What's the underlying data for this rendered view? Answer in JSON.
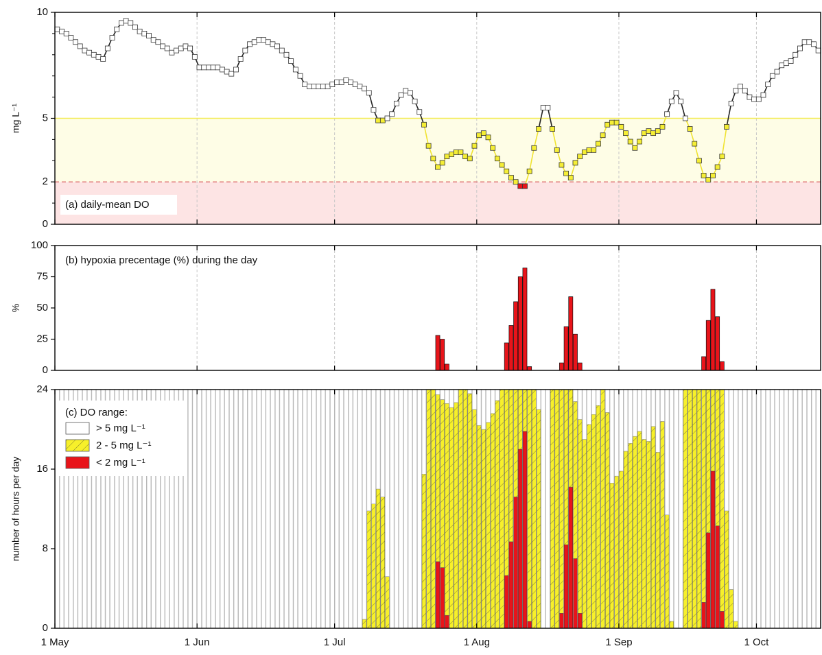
{
  "chart_data": [
    {
      "type": "line",
      "ylabel": "mg L⁻¹",
      "annotation": "(a) daily-mean DO",
      "xlim": [
        0,
        167
      ],
      "xticks": [
        0,
        31,
        61,
        92,
        123,
        153
      ],
      "grid": true,
      "ylim": [
        0,
        10
      ],
      "yticks": [
        0,
        2,
        5,
        10
      ],
      "minor_yticks": [
        1,
        3,
        4,
        6,
        7,
        8,
        9
      ],
      "thresholds": [
        2,
        5
      ],
      "band_colors": [
        "#fde4e4",
        "#fefde6"
      ],
      "threshold_line_colors": [
        "#e07a7a",
        "#f3eb55"
      ],
      "threshold_line_dash": [
        true,
        false
      ],
      "marker_colors": [
        "#e8141a",
        "#f5ee35",
        "#ffffff"
      ],
      "line_colors": [
        "#c8102e",
        "#f0e330",
        "#222222"
      ],
      "x": [
        0,
        1,
        2,
        3,
        4,
        5,
        6,
        7,
        8,
        9,
        10,
        11,
        12,
        13,
        14,
        15,
        16,
        17,
        18,
        19,
        20,
        21,
        22,
        23,
        24,
        25,
        26,
        27,
        28,
        29,
        30,
        31,
        32,
        33,
        34,
        35,
        36,
        37,
        38,
        39,
        40,
        41,
        42,
        43,
        44,
        45,
        46,
        47,
        48,
        49,
        50,
        51,
        52,
        53,
        54,
        55,
        56,
        57,
        58,
        59,
        60,
        61,
        62,
        63,
        64,
        65,
        66,
        67,
        68,
        69,
        70,
        71,
        72,
        73,
        74,
        75,
        76,
        77,
        78,
        79,
        80,
        81,
        82,
        83,
        84,
        85,
        86,
        87,
        88,
        89,
        90,
        91,
        92,
        93,
        94,
        95,
        96,
        97,
        98,
        99,
        100,
        101,
        102,
        103,
        104,
        105,
        106,
        107,
        108,
        109,
        110,
        111,
        112,
        113,
        114,
        115,
        116,
        117,
        118,
        119,
        120,
        121,
        122,
        123,
        124,
        125,
        126,
        127,
        128,
        129,
        130,
        131,
        132,
        133,
        134,
        135,
        136,
        137,
        138,
        139,
        140,
        141,
        142,
        143,
        144,
        145,
        146,
        147,
        148,
        149,
        150,
        151,
        152,
        153,
        154,
        155,
        156,
        157,
        158,
        159,
        160,
        161,
        162,
        163,
        164,
        165,
        166
      ],
      "values": [
        9.2,
        9.1,
        9.0,
        8.8,
        8.6,
        8.4,
        8.2,
        8.1,
        8.0,
        7.9,
        7.8,
        8.3,
        8.8,
        9.2,
        9.5,
        9.6,
        9.5,
        9.3,
        9.1,
        9.0,
        8.9,
        8.7,
        8.6,
        8.4,
        8.3,
        8.1,
        8.2,
        8.3,
        8.4,
        8.3,
        7.9,
        7.4,
        7.4,
        7.4,
        7.4,
        7.4,
        7.3,
        7.2,
        7.1,
        7.3,
        7.8,
        8.2,
        8.5,
        8.6,
        8.7,
        8.7,
        8.6,
        8.5,
        8.4,
        8.2,
        8.0,
        7.7,
        7.3,
        7.0,
        6.6,
        6.5,
        6.5,
        6.5,
        6.5,
        6.5,
        6.6,
        6.7,
        6.7,
        6.8,
        6.7,
        6.6,
        6.5,
        6.4,
        6.2,
        5.4,
        4.9,
        4.9,
        5.0,
        5.2,
        5.7,
        6.1,
        6.3,
        6.2,
        5.8,
        5.3,
        4.7,
        3.7,
        3.1,
        2.7,
        2.9,
        3.2,
        3.3,
        3.4,
        3.4,
        3.2,
        3.1,
        3.7,
        4.2,
        4.3,
        4.1,
        3.6,
        3.1,
        2.8,
        2.5,
        2.2,
        2.0,
        1.8,
        1.8,
        2.5,
        3.6,
        4.5,
        5.5,
        5.5,
        4.5,
        3.5,
        2.8,
        2.4,
        2.2,
        2.9,
        3.2,
        3.4,
        3.5,
        3.5,
        3.8,
        4.2,
        4.7,
        4.8,
        4.8,
        4.6,
        4.3,
        3.9,
        3.6,
        3.9,
        4.3,
        4.4,
        4.3,
        4.4,
        4.6,
        5.2,
        5.8,
        6.2,
        5.8,
        5.0,
        4.5,
        3.8,
        3.0,
        2.3,
        2.1,
        2.3,
        2.7,
        3.2,
        4.6,
        5.7,
        6.3,
        6.5,
        6.3,
        6.0,
        5.9,
        5.9,
        6.1,
        6.6,
        7.0,
        7.2,
        7.5,
        7.6,
        7.7,
        8.0,
        8.3,
        8.6,
        8.6,
        8.5,
        8.2
      ]
    },
    {
      "type": "bar",
      "ylabel": "%",
      "annotation": "(b) hypoxia precentage (%) during the day",
      "xlim": [
        0,
        167
      ],
      "xticks": [
        0,
        31,
        61,
        92,
        123,
        153
      ],
      "grid": true,
      "ylim": [
        0,
        100
      ],
      "yticks": [
        0,
        25,
        50,
        75,
        100
      ],
      "color": "#e8141a",
      "x": [
        83,
        84,
        85,
        98,
        99,
        100,
        101,
        102,
        103,
        110,
        111,
        112,
        113,
        114,
        141,
        142,
        143,
        144,
        145
      ],
      "values": [
        28,
        25,
        5,
        22,
        36,
        55,
        75,
        82,
        3,
        6,
        35,
        59,
        29,
        6,
        11,
        40,
        65,
        43,
        7
      ]
    },
    {
      "type": "bar",
      "stacked": true,
      "ylabel": "number of hours per day",
      "legend_title": "(c) DO range:",
      "xlim": [
        0,
        167
      ],
      "xticks": [
        {
          "value": 0,
          "label": "1 May"
        },
        {
          "value": 31,
          "label": "1 Jun"
        },
        {
          "value": 61,
          "label": "1 Jul"
        },
        {
          "value": 92,
          "label": "1 Aug"
        },
        {
          "value": 123,
          "label": "1 Sep"
        },
        {
          "value": 153,
          "label": "1 Oct"
        }
      ],
      "grid": false,
      "ylim": [
        0,
        24
      ],
      "yticks": [
        0,
        8,
        16,
        24
      ],
      "x": [
        0,
        1,
        2,
        3,
        4,
        5,
        6,
        7,
        8,
        9,
        10,
        11,
        12,
        13,
        14,
        15,
        16,
        17,
        18,
        19,
        20,
        21,
        22,
        23,
        24,
        25,
        26,
        27,
        28,
        29,
        30,
        31,
        32,
        33,
        34,
        35,
        36,
        37,
        38,
        39,
        40,
        41,
        42,
        43,
        44,
        45,
        46,
        47,
        48,
        49,
        50,
        51,
        52,
        53,
        54,
        55,
        56,
        57,
        58,
        59,
        60,
        61,
        62,
        63,
        64,
        65,
        66,
        67,
        68,
        69,
        70,
        71,
        72,
        73,
        74,
        75,
        76,
        77,
        78,
        79,
        80,
        81,
        82,
        83,
        84,
        85,
        86,
        87,
        88,
        89,
        90,
        91,
        92,
        93,
        94,
        95,
        96,
        97,
        98,
        99,
        100,
        101,
        102,
        103,
        104,
        105,
        106,
        107,
        108,
        109,
        110,
        111,
        112,
        113,
        114,
        115,
        116,
        117,
        118,
        119,
        120,
        121,
        122,
        123,
        124,
        125,
        126,
        127,
        128,
        129,
        130,
        131,
        132,
        133,
        134,
        135,
        136,
        137,
        138,
        139,
        140,
        141,
        142,
        143,
        144,
        145,
        146,
        147,
        148,
        149,
        150,
        151,
        152,
        153,
        154,
        155,
        156,
        157,
        158,
        159,
        160,
        161,
        162,
        163,
        164,
        165,
        166
      ],
      "series": [
        {
          "name": "> 5 mg L⁻¹",
          "color": "#ffffff",
          "values": [
            24,
            24,
            24,
            24,
            24,
            24,
            24,
            24,
            24,
            24,
            24,
            24,
            24,
            24,
            24,
            24,
            24,
            24,
            24,
            24,
            24,
            24,
            24,
            24,
            24,
            24,
            24,
            24,
            24,
            24,
            24,
            24,
            24,
            24,
            24,
            24,
            24,
            24,
            24,
            24,
            24,
            24,
            24,
            24,
            24,
            24,
            24,
            24,
            24,
            24,
            24,
            24,
            24,
            24,
            24,
            24,
            24,
            24,
            24,
            24,
            24,
            24,
            24,
            24,
            24,
            24,
            24,
            23.1,
            12.2,
            11.5,
            10,
            10.8,
            18.8,
            24,
            24,
            24,
            24,
            24,
            24,
            24,
            8.5,
            0,
            0,
            0.5,
            1,
            1.4,
            1.8,
            1.3,
            0,
            0,
            0.4,
            2,
            3.6,
            4,
            3.3,
            2.4,
            1.1,
            0,
            0,
            0,
            0,
            0,
            0,
            0,
            0,
            2,
            24,
            24,
            0,
            0,
            0,
            0,
            0,
            1.2,
            3,
            5,
            3.5,
            2.5,
            1.6,
            0,
            2.3,
            9.4,
            8.7,
            8.2,
            6.2,
            5.4,
            4.7,
            4.2,
            5,
            5.2,
            3.7,
            6.3,
            3.2,
            12.6,
            23.3,
            24,
            24,
            0,
            0,
            0,
            0,
            0,
            0,
            0,
            0,
            0,
            12.2,
            20.1,
            23.3,
            24,
            24,
            24,
            24,
            24,
            24,
            24,
            24,
            24,
            24,
            24,
            24,
            24,
            24,
            24,
            24,
            24,
            24
          ]
        },
        {
          "name": "2 - 5 mg L⁻¹",
          "color": "#f7f02a",
          "hatch": true,
          "values": [
            0,
            0,
            0,
            0,
            0,
            0,
            0,
            0,
            0,
            0,
            0,
            0,
            0,
            0,
            0,
            0,
            0,
            0,
            0,
            0,
            0,
            0,
            0,
            0,
            0,
            0,
            0,
            0,
            0,
            0,
            0,
            0,
            0,
            0,
            0,
            0,
            0,
            0,
            0,
            0,
            0,
            0,
            0,
            0,
            0,
            0,
            0,
            0,
            0,
            0,
            0,
            0,
            0,
            0,
            0,
            0,
            0,
            0,
            0,
            0,
            0,
            0,
            0,
            0,
            0,
            0,
            0,
            0.9,
            11.8,
            12.5,
            14,
            13.2,
            5.2,
            0,
            0,
            0,
            0,
            0,
            0,
            0,
            15.5,
            24,
            24,
            16.8,
            16.9,
            21.3,
            22.2,
            22.7,
            24,
            24,
            23.6,
            22,
            20.4,
            20,
            20.7,
            21.6,
            22.9,
            24,
            18.7,
            15.3,
            10.8,
            6,
            4.2,
            23.3,
            24,
            22,
            0,
            0,
            24,
            24,
            22.5,
            15.6,
            9.8,
            15.8,
            19.5,
            19,
            20.5,
            21.5,
            22.4,
            24,
            21.7,
            14.6,
            15.3,
            15.8,
            17.8,
            18.6,
            19.3,
            19.8,
            19,
            18.8,
            20.3,
            17.7,
            20.8,
            11.4,
            0.7,
            0,
            0,
            24,
            24,
            24,
            24,
            21.4,
            14.4,
            8.2,
            13.7,
            22.3,
            11.8,
            3.9,
            0.7,
            0,
            0,
            0,
            0,
            0,
            0,
            0,
            0,
            0,
            0,
            0,
            0,
            0,
            0,
            0,
            0,
            0,
            0
          ]
        },
        {
          "name": "< 2 mg L⁻¹",
          "color": "#e8141a",
          "values": [
            0,
            0,
            0,
            0,
            0,
            0,
            0,
            0,
            0,
            0,
            0,
            0,
            0,
            0,
            0,
            0,
            0,
            0,
            0,
            0,
            0,
            0,
            0,
            0,
            0,
            0,
            0,
            0,
            0,
            0,
            0,
            0,
            0,
            0,
            0,
            0,
            0,
            0,
            0,
            0,
            0,
            0,
            0,
            0,
            0,
            0,
            0,
            0,
            0,
            0,
            0,
            0,
            0,
            0,
            0,
            0,
            0,
            0,
            0,
            0,
            0,
            0,
            0,
            0,
            0,
            0,
            0,
            0,
            0,
            0,
            0,
            0,
            0,
            0,
            0,
            0,
            0,
            0,
            0,
            0,
            0,
            0,
            0,
            6.7,
            6.1,
            1.3,
            0,
            0,
            0,
            0,
            0,
            0,
            0,
            0,
            0,
            0,
            0,
            0,
            5.3,
            8.7,
            13.2,
            18,
            19.8,
            0.7,
            0,
            0,
            0,
            0,
            0,
            0,
            1.5,
            8.4,
            14.2,
            7,
            1.5,
            0,
            0,
            0,
            0,
            0,
            0,
            0,
            0,
            0,
            0,
            0,
            0,
            0,
            0,
            0,
            0,
            0,
            0,
            0,
            0,
            0,
            0,
            0,
            0,
            0,
            0,
            2.6,
            9.6,
            15.8,
            10.3,
            1.7,
            0,
            0,
            0,
            0,
            0,
            0,
            0,
            0,
            0,
            0,
            0,
            0,
            0,
            0,
            0,
            0,
            0,
            0,
            0,
            0,
            0
          ]
        }
      ]
    }
  ]
}
